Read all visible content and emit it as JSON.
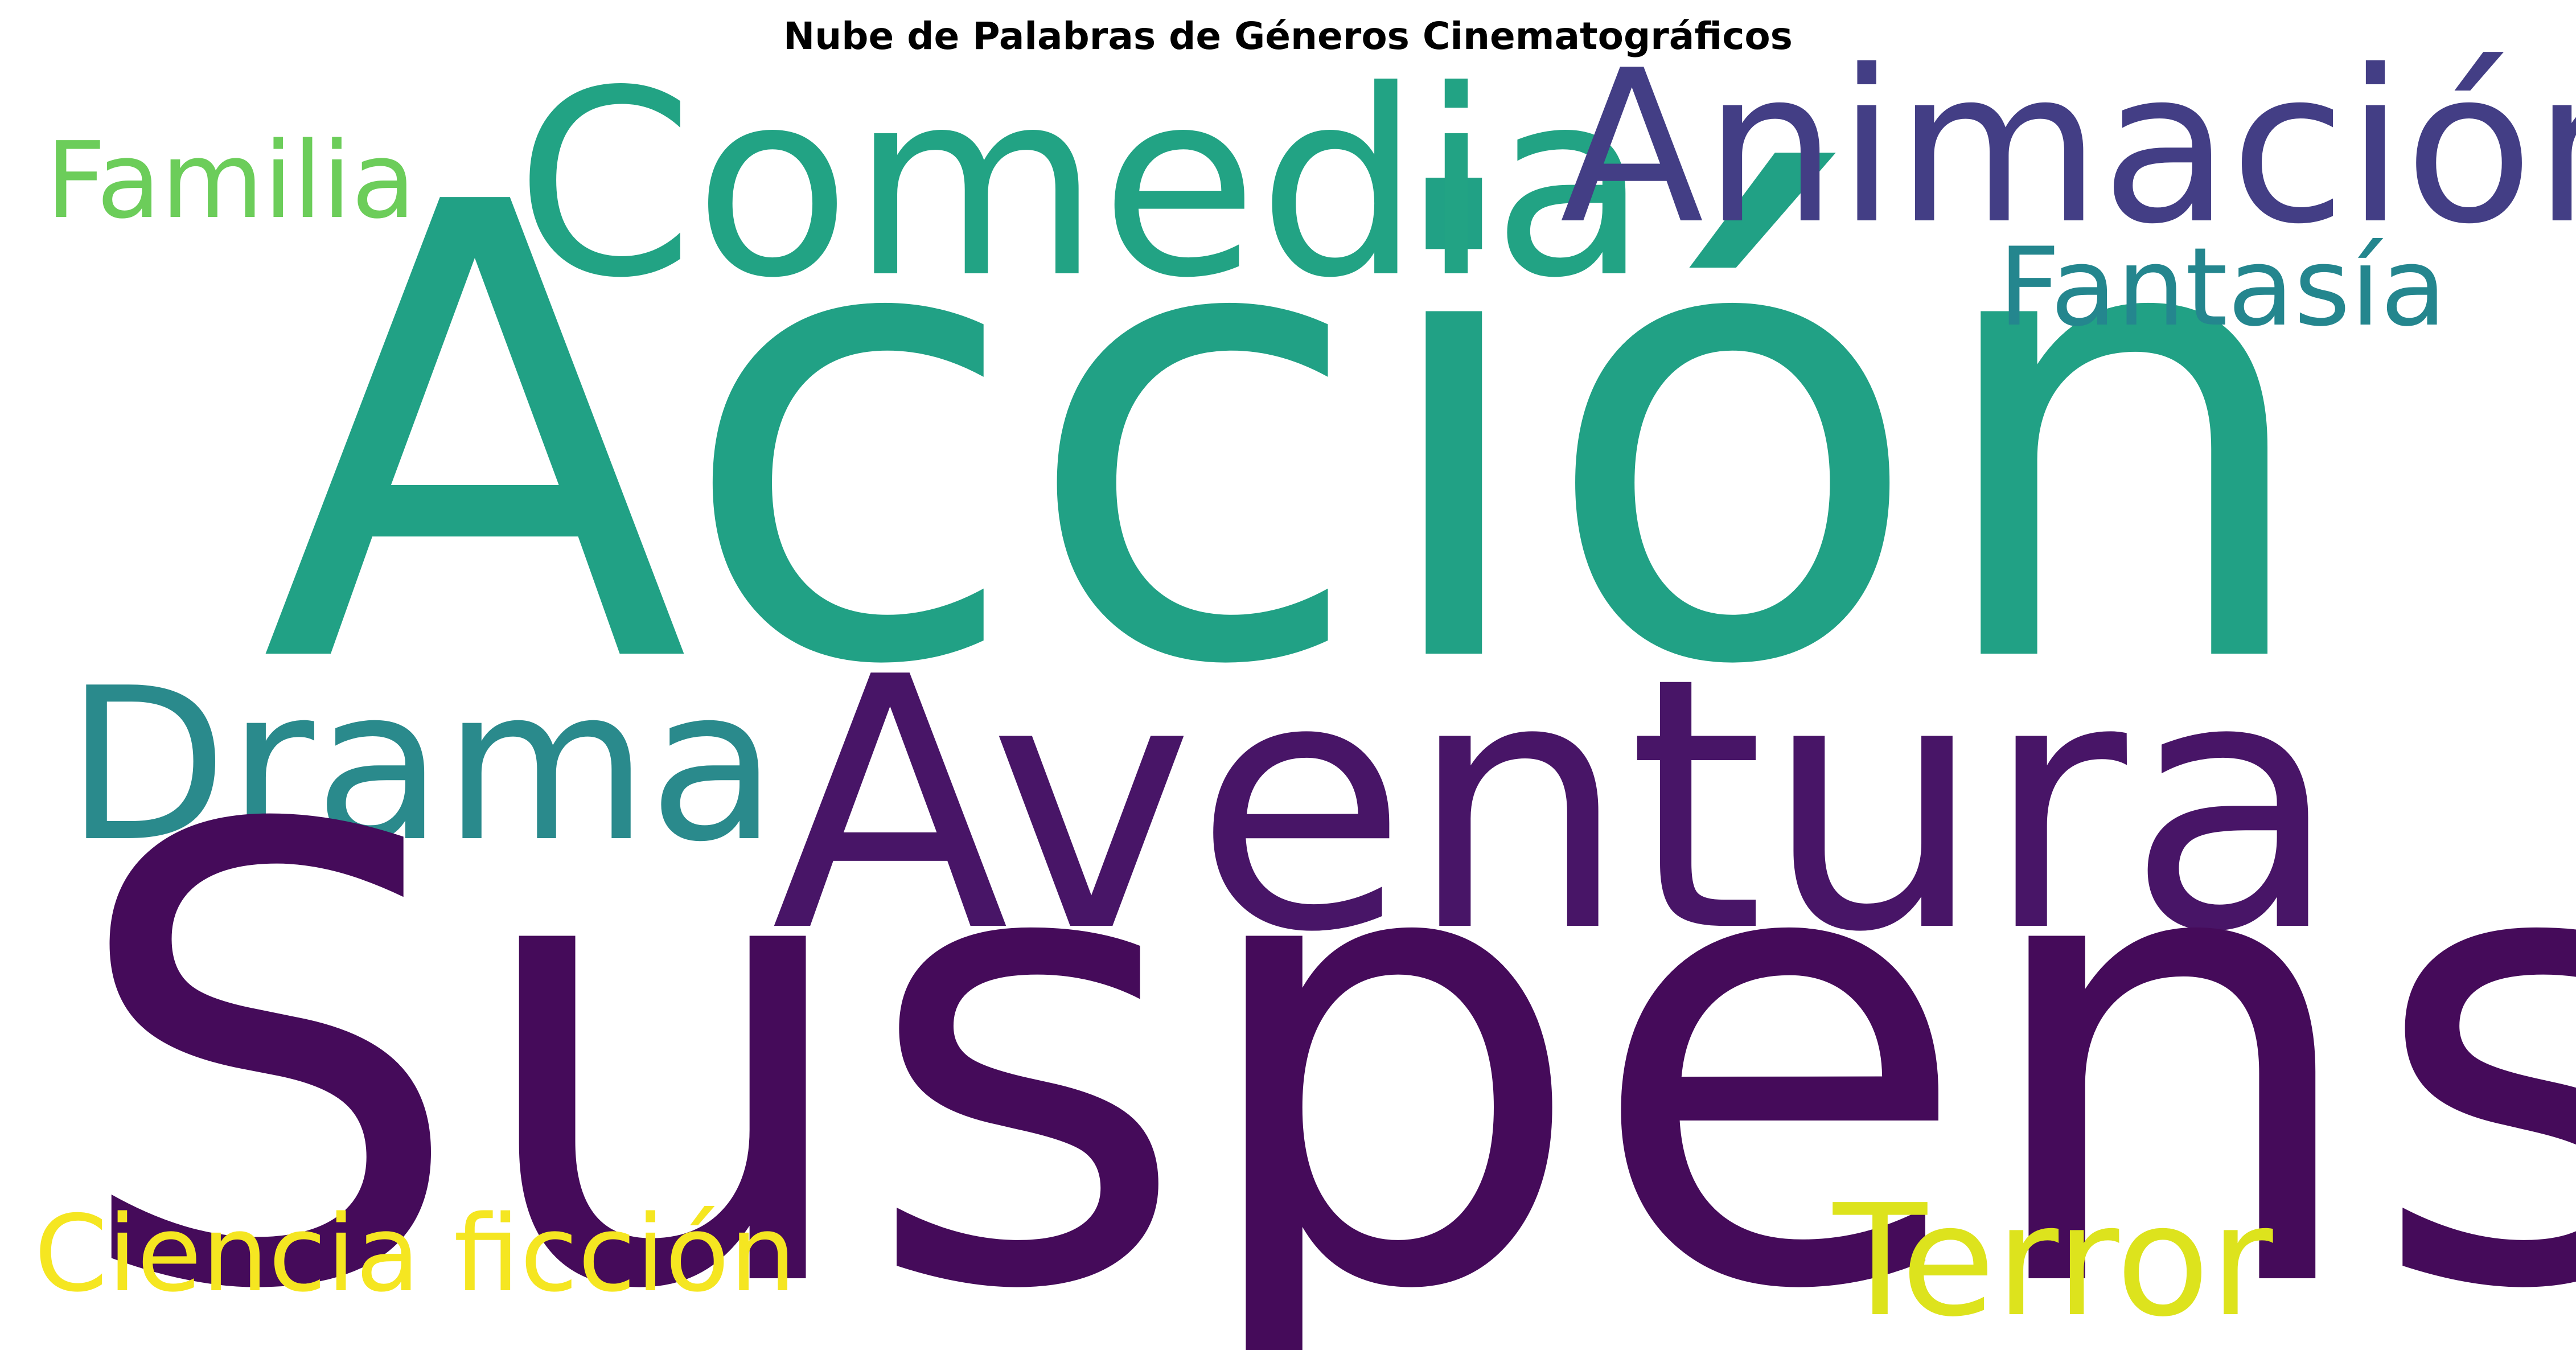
{
  "title": "Nube de Palabras de Géneros Cinematográficos",
  "words": {
    "accion": {
      "text": "Acción",
      "color": "#21a185"
    },
    "suspense": {
      "text": "Suspense",
      "color": "#450b5a"
    },
    "aventura": {
      "text": "Aventura",
      "color": "#481567"
    },
    "comedia": {
      "text": "Comedia",
      "color": "#22a384"
    },
    "animacion": {
      "text": "Animación",
      "color": "#433e85"
    },
    "drama": {
      "text": "Drama",
      "color": "#2a8a8c"
    },
    "terror": {
      "text": "Terror",
      "color": "#dde31d"
    },
    "fantasia": {
      "text": "Fantasía",
      "color": "#24868e"
    },
    "familia": {
      "text": "Familia",
      "color": "#6ccd5a"
    },
    "ciencia": {
      "text": "Ciencia ficción",
      "color": "#f5e621"
    }
  }
}
